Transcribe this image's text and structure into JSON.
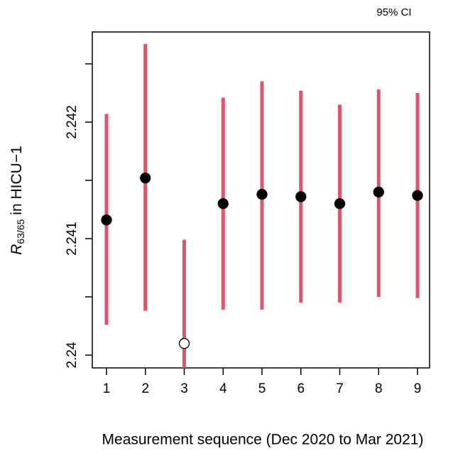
{
  "chart_data": {
    "type": "errorbar",
    "legend_text": "95% CI",
    "xlabel": "Measurement sequence (Dec 2020 to Mar 2021)",
    "ylabel_symbol": "R",
    "ylabel_subscript": "63/65",
    "ylabel_rest": " in HICU−1",
    "x": [
      1,
      2,
      3,
      4,
      5,
      6,
      7,
      8,
      9
    ],
    "xlim": [
      0.635,
      9.31
    ],
    "xticks": [
      1,
      2,
      3,
      4,
      5,
      6,
      7,
      8,
      9
    ],
    "ylim": [
      2.23989,
      2.242774
    ],
    "yticks": [
      2.24,
      2.241,
      2.242
    ],
    "yminorticks": [
      2.2405,
      2.2415,
      2.2425
    ],
    "series": [
      {
        "color": "#df536b",
        "values": [
          2.24116,
          2.24152,
          2.2401,
          2.2413,
          2.24138,
          2.24136,
          2.2413,
          2.2414,
          2.24137
        ],
        "upper": [
          2.24207,
          2.24267,
          2.24099,
          2.24221,
          2.24235,
          2.24227,
          2.24215,
          2.24228,
          2.24225
        ],
        "lower": [
          2.24026,
          2.24038,
          2.23921,
          2.24039,
          2.24039,
          2.24045,
          2.24045,
          2.2405,
          2.24049
        ]
      }
    ],
    "open_points": [
      3
    ]
  }
}
